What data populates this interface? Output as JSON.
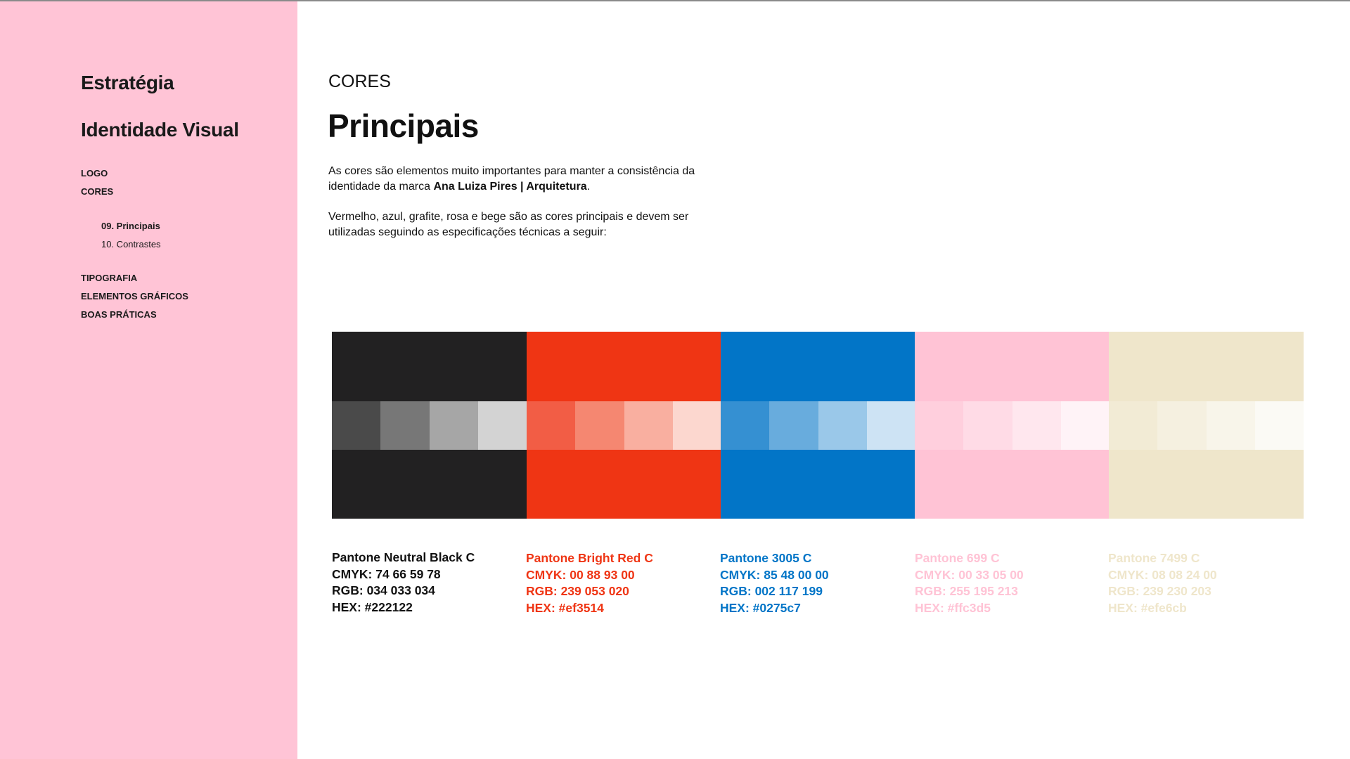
{
  "sidebar": {
    "heading_1": "Estratégia",
    "heading_2": "Identidade Visual",
    "nav_top": [
      "LOGO",
      "CORES"
    ],
    "sub_nav": [
      "09. Principais",
      "10. Contrastes"
    ],
    "nav_bottom": [
      "TIPOGRAFIA",
      "ELEMENTOS GRÁFICOS",
      "BOAS PRÁTICAS"
    ],
    "background": "#ffc4d6"
  },
  "main": {
    "eyebrow": "CORES",
    "title": "Principais",
    "intro_1_before": "As cores são elementos muito importantes para manter a consistência da identidade da marca ",
    "intro_1_brand": "Ana Luiza Pires | Arquitetura",
    "intro_1_after": ".",
    "intro_2": "Vermelho, azul, grafite, rosa e bege são as cores principais e devem ser utilizadas seguindo as especificações técnicas a seguir:"
  },
  "colors": [
    {
      "pantone": "Pantone Neutral Black C",
      "cmyk": "CMYK: 74 66 59 78",
      "rgb": "RGB: 034 033 034",
      "hex_label": "HEX: #222122",
      "hex": "#222122",
      "text_color": "#111111",
      "tints": [
        "#4a4a4a",
        "#777777",
        "#a6a6a6",
        "#d3d3d3"
      ]
    },
    {
      "pantone": "Pantone Bright Red C",
      "cmyk": "CMYK: 00 88 93 00",
      "rgb": "RGB: 239 053 020",
      "hex_label": "HEX: #ef3514",
      "hex": "#ef3514",
      "text_color": "#ef3514",
      "tints": [
        "#f25d45",
        "#f58771",
        "#f9afa0",
        "#fcd7cf"
      ]
    },
    {
      "pantone": "Pantone 3005 C",
      "cmyk": "CMYK: 85 48 00 00",
      "rgb": "RGB: 002 117 199",
      "hex_label": "HEX: #0275c7",
      "hex": "#0275c7",
      "text_color": "#0275c7",
      "tints": [
        "#3590d2",
        "#68acdd",
        "#9ac8e9",
        "#cde3f4"
      ]
    },
    {
      "pantone": "Pantone 699 C",
      "cmyk": "CMYK: 00 33 05 00",
      "rgb": "RGB: 255 195 213",
      "hex_label": "HEX: #ffc3d5",
      "hex": "#ffc3d5",
      "text_color": "#ffc3d5",
      "tints": [
        "#ffcfdd",
        "#ffdbe6",
        "#ffe7ee",
        "#fff3f7"
      ]
    },
    {
      "pantone": "Pantone 7499 C",
      "cmyk": "CMYK: 08 08 24 00",
      "rgb": "RGB: 239 230 203",
      "hex_label": "HEX: #efe6cb",
      "hex": "#efe6cb",
      "text_color": "#efe6cb",
      "tints": [
        "#f2ebd5",
        "#f5f0e0",
        "#f8f5ea",
        "#fbfaf5"
      ]
    }
  ]
}
